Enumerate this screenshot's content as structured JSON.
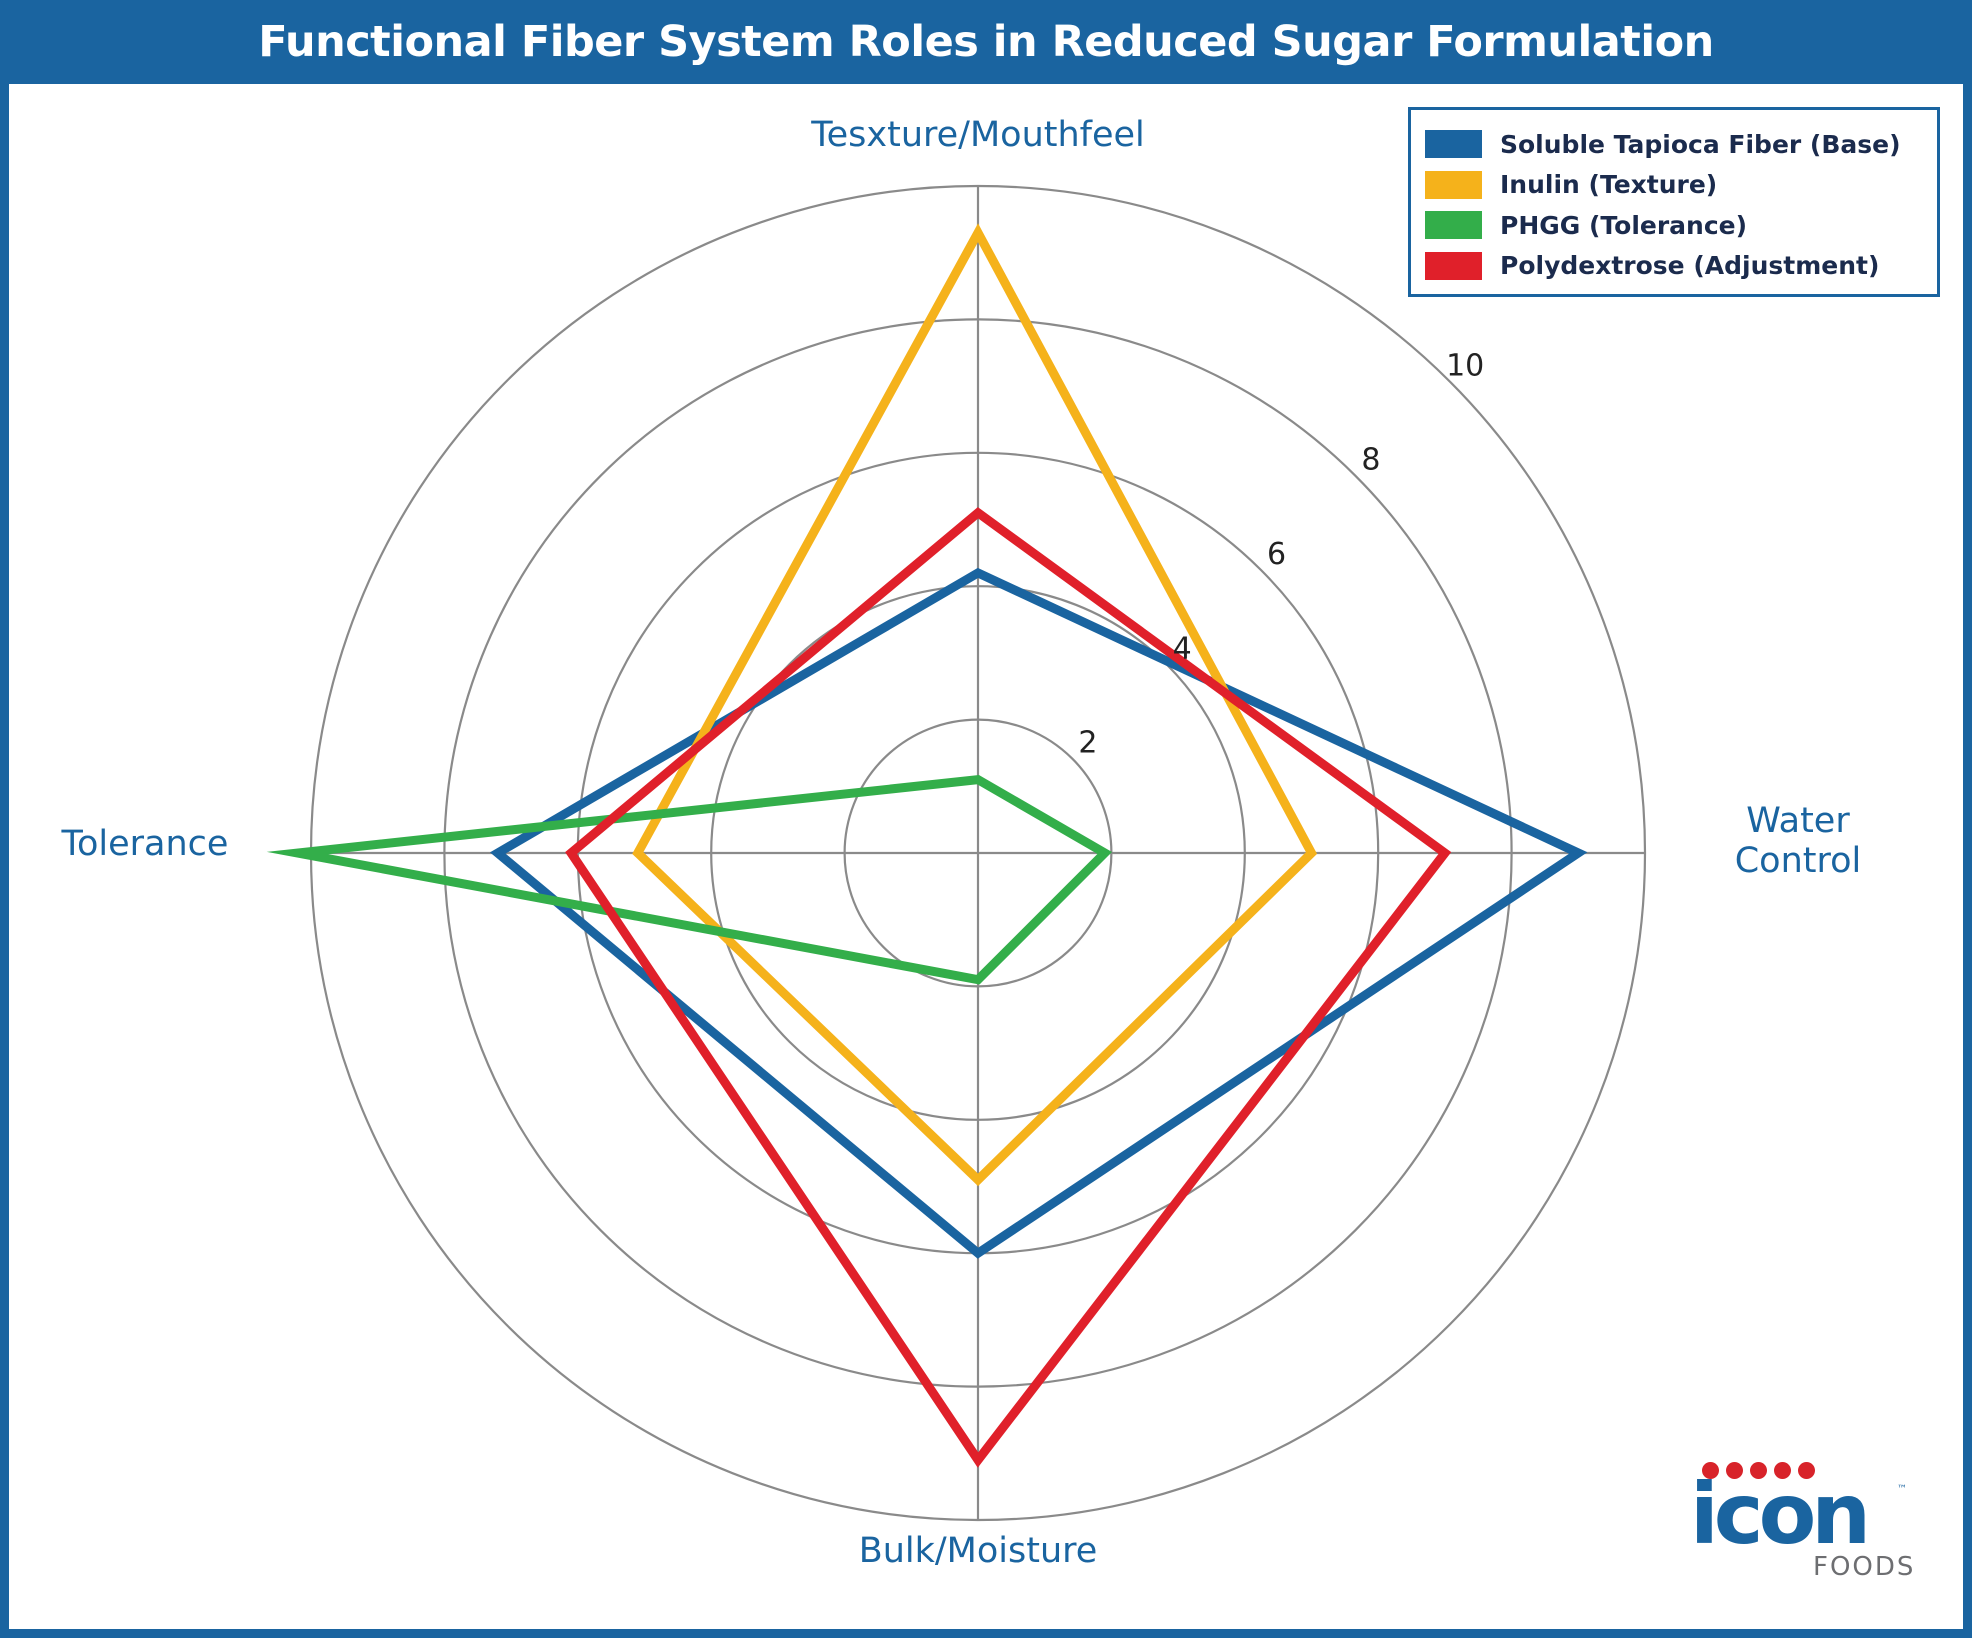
{
  "title": "Functional Fiber System Roles in Reduced Sugar Formulation",
  "chart_data": {
    "type": "radar",
    "title": "Functional Fiber System Roles in Reduced Sugar Formulation",
    "axes": [
      {
        "label_lines": [
          "Tesxture/Mouthfeel"
        ]
      },
      {
        "label_lines": [
          "Water",
          "Control"
        ]
      },
      {
        "label_lines": [
          "Bulk/Moisture"
        ]
      },
      {
        "label_lines": [
          "Tolerance"
        ]
      }
    ],
    "rlim": [
      0,
      10
    ],
    "rings": [
      2,
      4,
      6,
      8,
      10
    ],
    "tick_labels": [
      "2",
      "4",
      "6",
      "8",
      "10"
    ],
    "grid": true,
    "legend_position": "top-right",
    "series": [
      {
        "name": "Soluble Tapioca Fiber (Base)",
        "color": "#1a64a0",
        "values": [
          4.2,
          9.0,
          6.0,
          7.2
        ]
      },
      {
        "name": "Inulin (Texture)",
        "color": "#f5b21b",
        "values": [
          9.3,
          5.0,
          4.9,
          5.1
        ]
      },
      {
        "name": "PHGG (Tolerance)",
        "color": "#33ae4a",
        "values": [
          1.1,
          1.9,
          1.9,
          10.2
        ]
      },
      {
        "name": "Polydextrose (Adjustment)",
        "color": "#e0202a",
        "values": [
          5.1,
          7.0,
          9.1,
          6.1
        ]
      }
    ]
  },
  "logo": {
    "word": "icon",
    "trademark": "™",
    "sub": "FOODS"
  }
}
